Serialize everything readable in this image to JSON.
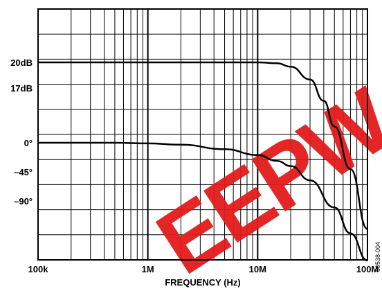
{
  "chart_data": {
    "type": "line",
    "xlabel": "FREQUENCY (Hz)",
    "x_scale": "log",
    "xlim": [
      100000,
      100000000
    ],
    "x_tick_labels": [
      "100k",
      "1M",
      "10M",
      "100M"
    ],
    "y_tick_labels": [
      "20dB",
      "17dB",
      "0°",
      "–45°",
      "–90°"
    ],
    "grid": true,
    "series": [
      {
        "unit": "dB",
        "x": [
          100000,
          1000000,
          10000000,
          15000000,
          20000000,
          30000000,
          40000000,
          50000000,
          70000000,
          100000000
        ],
        "values": [
          20,
          20,
          20,
          19.9,
          19.5,
          18,
          15.5,
          12.5,
          7.5,
          0.5
        ]
      },
      {
        "unit": "degrees",
        "x": [
          100000,
          500000,
          1000000,
          2000000,
          5000000,
          10000000,
          15000000,
          20000000,
          30000000,
          50000000,
          70000000,
          100000000
        ],
        "values": [
          0,
          0,
          -1,
          -3,
          -10,
          -19,
          -28,
          -36,
          -58,
          -100,
          -140,
          -182
        ]
      }
    ],
    "figure_id": "00538-004",
    "watermark": "EEPW"
  }
}
